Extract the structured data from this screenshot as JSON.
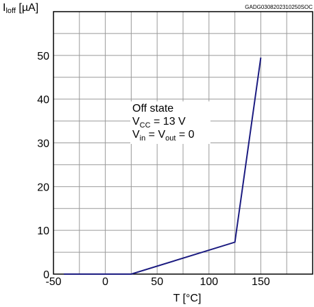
{
  "colors": {
    "line": "#1a1a80",
    "grid": "#999999",
    "axis": "#000000",
    "background": "#ffffff"
  },
  "chart_data": {
    "type": "line",
    "id_code": "GADG0308202310250SOC",
    "y_axis_label": {
      "main": "I",
      "sub": "loff",
      "unit": " [µA]"
    },
    "x_axis_label": "T [°C]",
    "xlim": [
      -50,
      200
    ],
    "ylim": [
      0,
      60
    ],
    "x_ticks": [
      -50,
      0,
      50,
      100,
      150
    ],
    "y_ticks": [
      0,
      10,
      20,
      30,
      40,
      50
    ],
    "x_grid": [
      -25,
      0,
      25,
      50,
      75,
      100,
      125,
      150,
      175
    ],
    "y_grid": [
      5,
      10,
      15,
      20,
      25,
      30,
      35,
      40,
      45,
      50,
      55
    ],
    "grid": true,
    "annotation": [
      {
        "main": "Off state",
        "sub": "",
        "rest": ""
      },
      {
        "main": "V",
        "sub": "CC",
        "rest": " = 13 V"
      },
      {
        "main": "V",
        "sub": "in",
        "rest": " = V",
        "sub2": "out",
        "rest2": " = 0"
      }
    ],
    "series": [
      {
        "x": [
          -40,
          25,
          125,
          150
        ],
        "y": [
          0,
          0,
          7.3,
          49.5
        ]
      }
    ]
  }
}
